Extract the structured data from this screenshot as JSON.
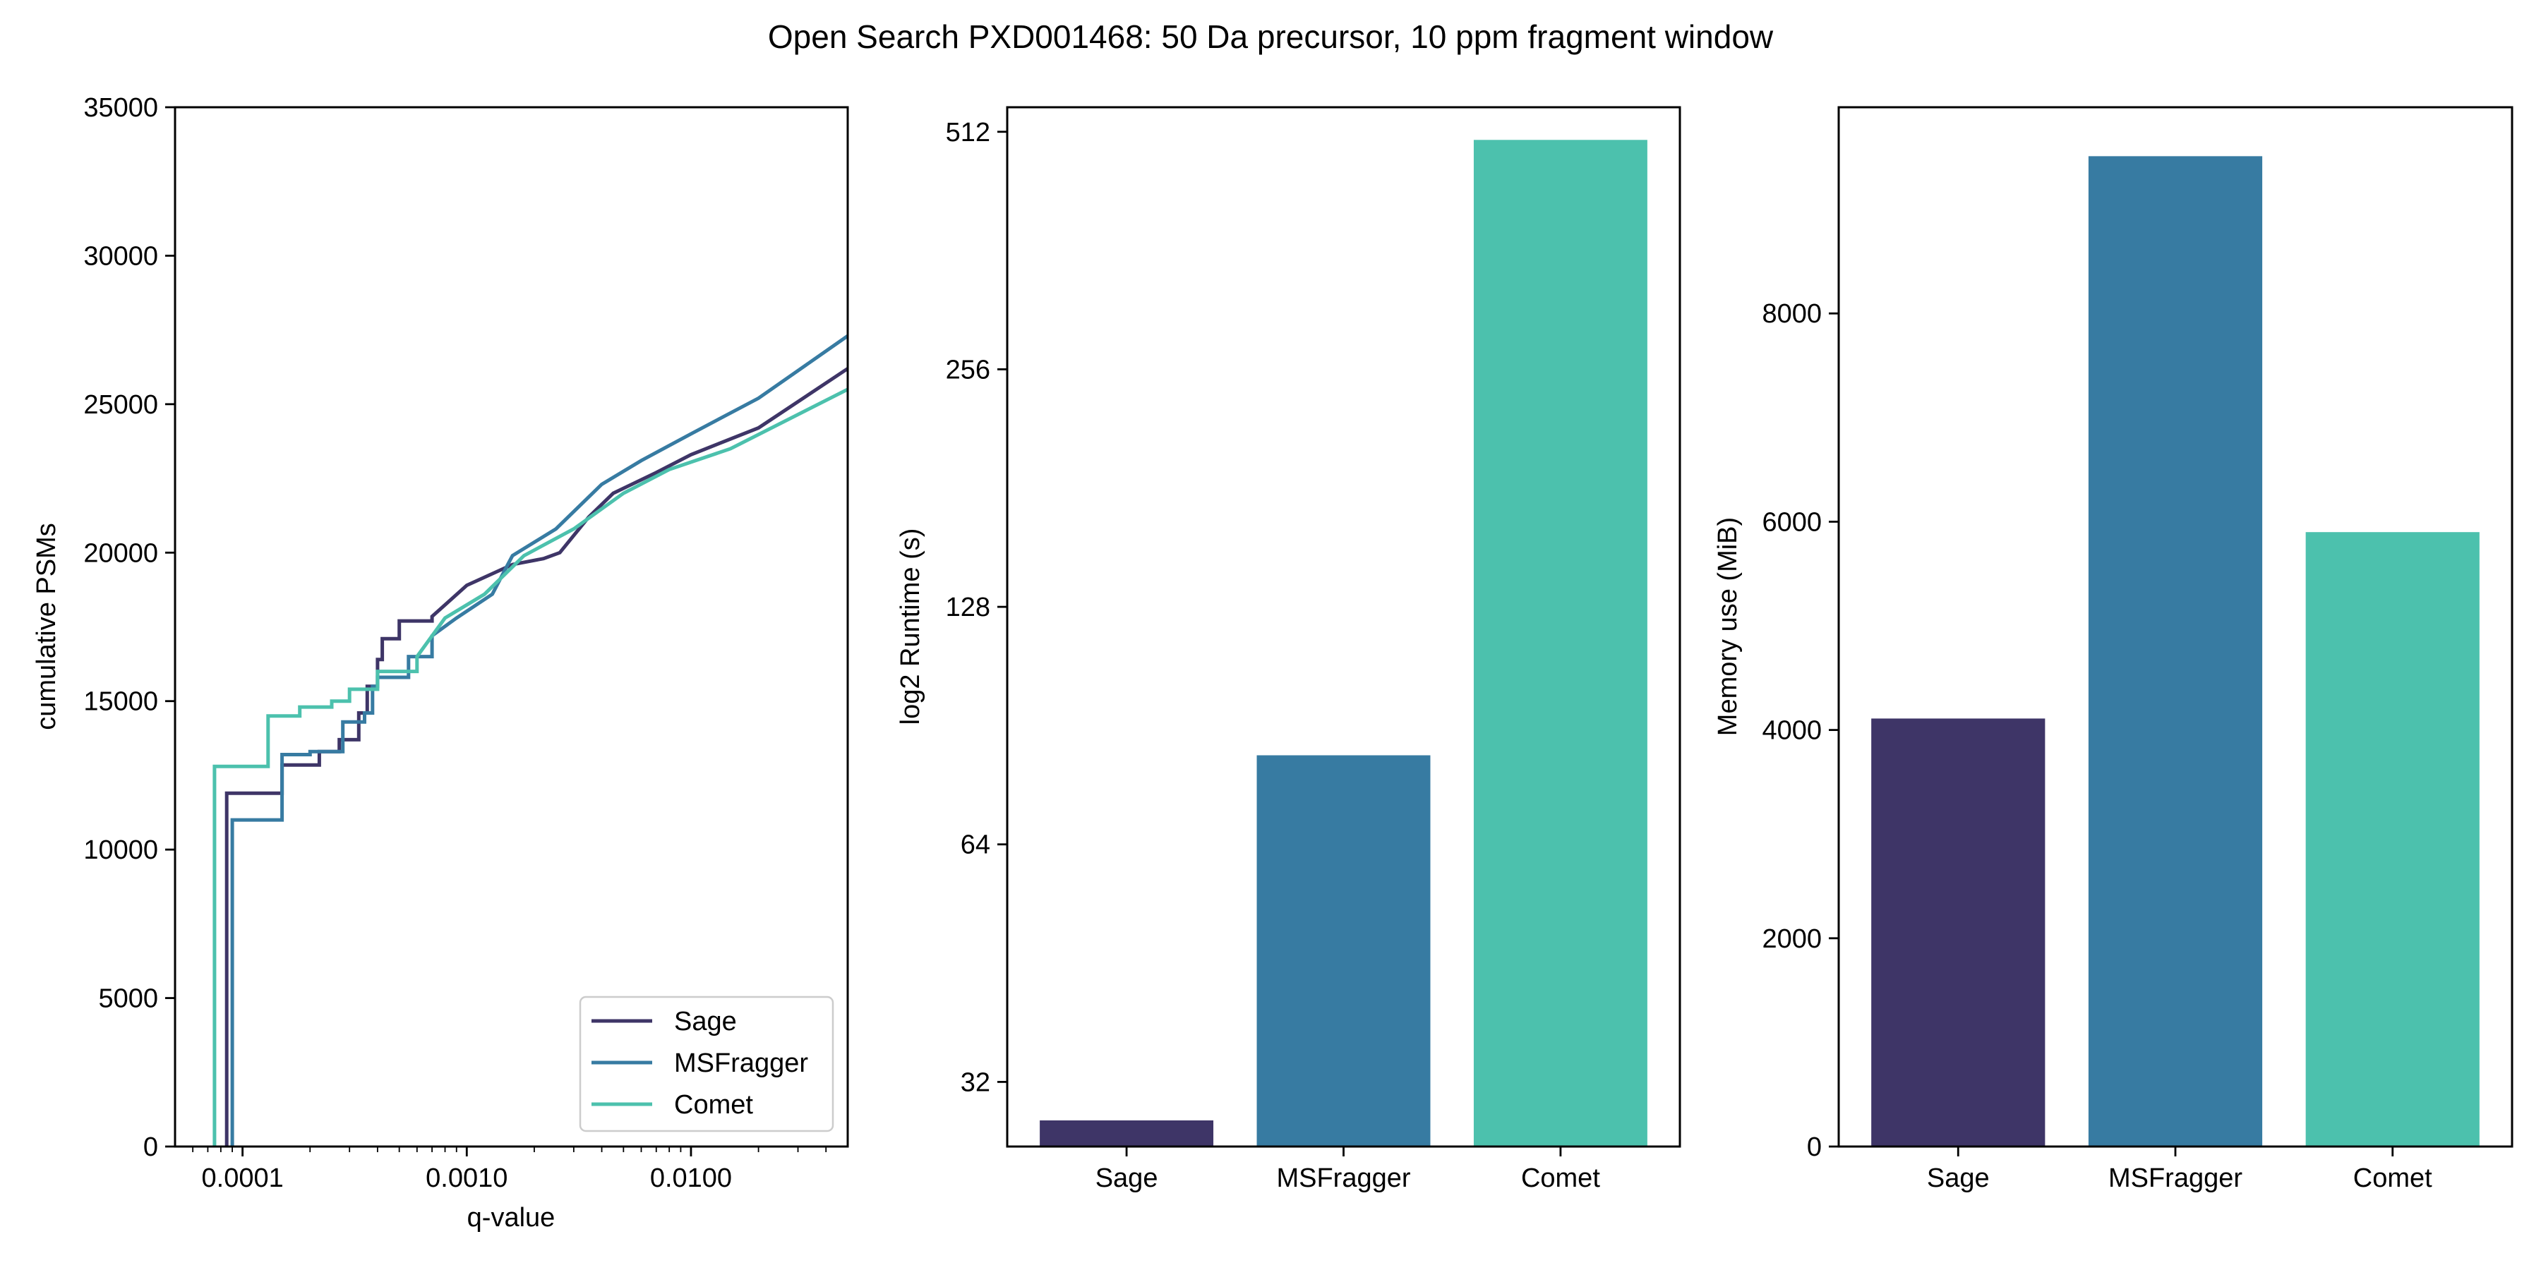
{
  "title": "Open Search PXD001468: 50 Da precursor, 10 ppm fragment window",
  "colors": {
    "Sage": "#3e3567",
    "MSFragger": "#377ba2",
    "Comet": "#4cc1ad"
  },
  "chart_data": [
    {
      "type": "line",
      "xlabel": "q-value",
      "ylabel": "cumulative PSMs",
      "xscale": "log",
      "xlim": [
        5e-05,
        0.05
      ],
      "ylim": [
        0,
        35000
      ],
      "xticks": [
        "0.0001",
        "0.0010",
        "0.0100"
      ],
      "xtick_values": [
        0.0001,
        0.001,
        0.01
      ],
      "yticks": [
        "0",
        "5000",
        "10000",
        "15000",
        "20000",
        "25000",
        "30000",
        "35000"
      ],
      "ytick_values": [
        0,
        5000,
        10000,
        15000,
        20000,
        25000,
        30000,
        35000
      ],
      "legend": {
        "position": "lower-right",
        "entries": [
          "Sage",
          "MSFragger",
          "Comet"
        ]
      },
      "series": [
        {
          "name": "Sage",
          "color": "#3e3567",
          "step": true,
          "x": [
            8.5e-05,
            8.5e-05,
            0.00015,
            0.00015,
            0.00022,
            0.00022,
            0.00027,
            0.00027,
            0.00033,
            0.00033,
            0.00036,
            0.00036,
            0.0004,
            0.0004,
            0.00042,
            0.00042,
            0.0005,
            0.0005,
            0.0007,
            0.0007,
            0.001,
            0.0016,
            0.0022,
            0.0026,
            0.0035,
            0.0045,
            0.007,
            0.01,
            0.02,
            0.05
          ],
          "y": [
            0,
            11900,
            11900,
            12850,
            12850,
            13300,
            13300,
            13700,
            13700,
            14600,
            14600,
            15500,
            15500,
            16400,
            16400,
            17100,
            17100,
            17700,
            17700,
            17850,
            18900,
            19600,
            19800,
            20000,
            21200,
            22000,
            22700,
            23300,
            24200,
            26200
          ]
        },
        {
          "name": "MSFragger",
          "color": "#377ba2",
          "step": true,
          "x": [
            9e-05,
            9e-05,
            0.00015,
            0.00015,
            0.0002,
            0.0002,
            0.00028,
            0.00028,
            0.00035,
            0.00035,
            0.00038,
            0.00038,
            0.0004,
            0.0004,
            0.00055,
            0.00055,
            0.0007,
            0.0007,
            0.0009,
            0.0013,
            0.0015,
            0.0016,
            0.0025,
            0.004,
            0.006,
            0.01,
            0.02,
            0.05
          ],
          "y": [
            0,
            11000,
            11000,
            13200,
            13200,
            13300,
            13300,
            14300,
            14300,
            14600,
            14600,
            15500,
            15500,
            15800,
            15800,
            16500,
            16500,
            17200,
            17800,
            18600,
            19500,
            19900,
            20800,
            22300,
            23100,
            24000,
            25200,
            27300
          ]
        },
        {
          "name": "Comet",
          "color": "#4cc1ad",
          "step": true,
          "x": [
            7.5e-05,
            7.5e-05,
            0.00013,
            0.00013,
            0.00018,
            0.00018,
            0.00025,
            0.00025,
            0.0003,
            0.0003,
            0.0004,
            0.0004,
            0.0006,
            0.0006,
            0.0008,
            0.0012,
            0.0018,
            0.003,
            0.005,
            0.008,
            0.015,
            0.05
          ],
          "y": [
            0,
            12800,
            12800,
            14500,
            14500,
            14800,
            14800,
            15000,
            15000,
            15400,
            15400,
            16000,
            16000,
            16500,
            17800,
            18600,
            19900,
            20800,
            22000,
            22800,
            23500,
            25500
          ]
        }
      ]
    },
    {
      "type": "bar",
      "xlabel": "",
      "ylabel": "log2 Runtime (s)",
      "yscale": "log2",
      "ylim": [
        26.5,
        550
      ],
      "yticks": [
        "32",
        "64",
        "128",
        "256",
        "512"
      ],
      "ytick_values": [
        32,
        64,
        128,
        256,
        512
      ],
      "categories": [
        "Sage",
        "MSFragger",
        "Comet"
      ],
      "values": [
        28.6,
        83.0,
        500.0
      ]
    },
    {
      "type": "bar",
      "xlabel": "",
      "ylabel": "Memory use (MiB)",
      "ylim": [
        0,
        9980
      ],
      "yticks": [
        "0",
        "2000",
        "4000",
        "6000",
        "8000"
      ],
      "ytick_values": [
        0,
        2000,
        4000,
        6000,
        8000
      ],
      "categories": [
        "Sage",
        "MSFragger",
        "Comet"
      ],
      "values": [
        4110,
        9510,
        5900
      ]
    }
  ]
}
